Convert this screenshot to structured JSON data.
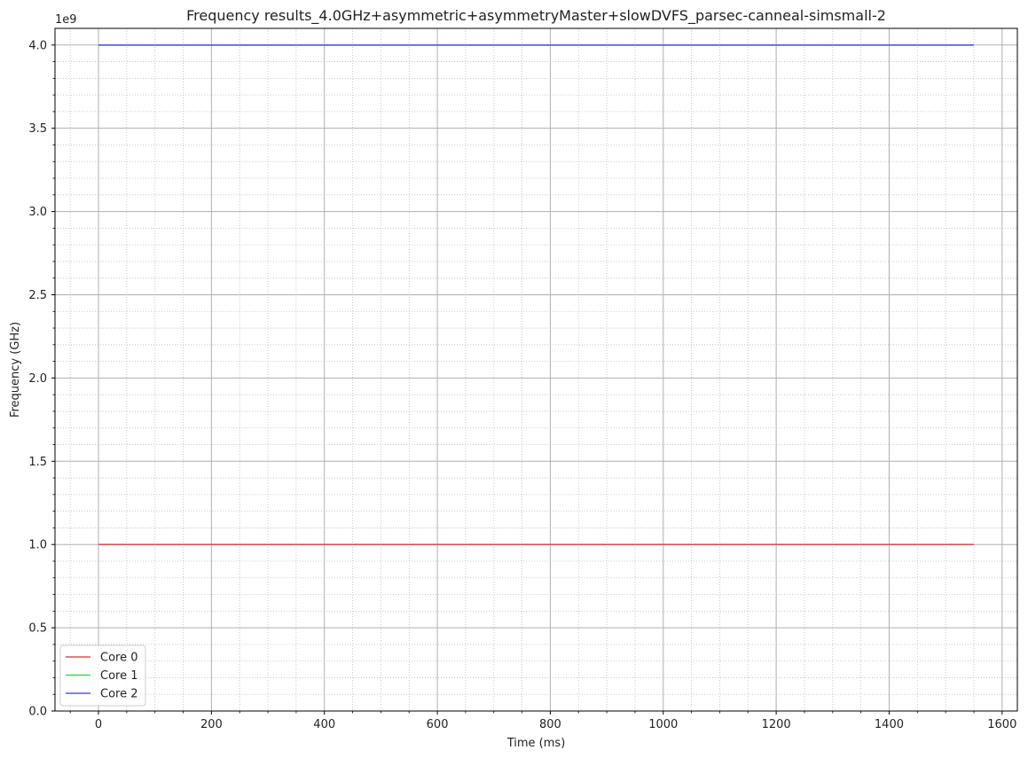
{
  "chart_data": {
    "type": "line",
    "title": "Frequency results_4.0GHz+asymmetric+asymmetryMaster+slowDVFS_parsec-canneal-simsmall-2",
    "xlabel": "Time (ms)",
    "ylabel": "Frequency (GHz)",
    "y_offset_label": "1e9",
    "xlim": [
      -77,
      1627
    ],
    "ylim": [
      0,
      4100000000
    ],
    "x_ticks": [
      0,
      200,
      400,
      600,
      800,
      1000,
      1200,
      1400,
      1600
    ],
    "x_tick_labels": [
      "0",
      "200",
      "400",
      "600",
      "800",
      "1000",
      "1200",
      "1400",
      "1600"
    ],
    "y_ticks": [
      0,
      500000000,
      1000000000,
      1500000000,
      2000000000,
      2500000000,
      3000000000,
      3500000000,
      4000000000
    ],
    "y_tick_labels": [
      "0.0",
      "0.5",
      "1.0",
      "1.5",
      "2.0",
      "2.5",
      "3.0",
      "3.5",
      "4.0"
    ],
    "grid": true,
    "minor_grid": true,
    "legend_position": "bottom-left",
    "series": [
      {
        "name": "Core 0",
        "color": "#d9534f",
        "x": [
          0,
          1550
        ],
        "y": [
          1000000000,
          1000000000
        ]
      },
      {
        "name": "Core 1",
        "color": "#4cd44c",
        "x": [
          0,
          1550
        ],
        "y": [
          4000000000,
          4000000000
        ]
      },
      {
        "name": "Core 2",
        "color": "#5a5ad6",
        "x": [
          0,
          1550
        ],
        "y": [
          4000000000,
          4000000000
        ]
      }
    ]
  }
}
